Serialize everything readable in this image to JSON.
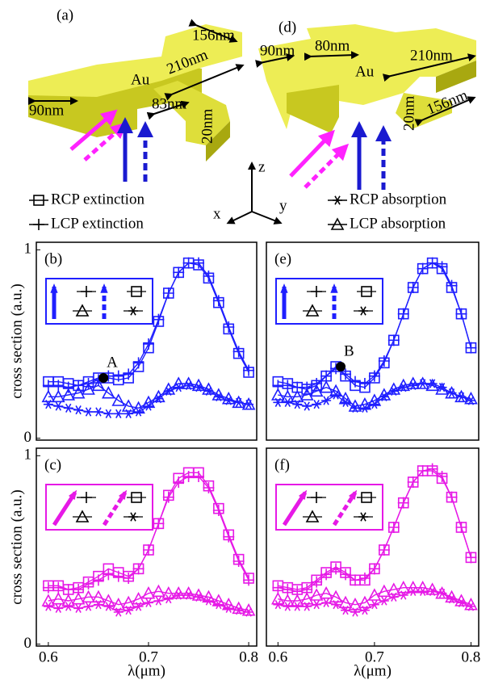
{
  "diagram": {
    "panels": [
      {
        "label": "(a)",
        "material": "Au",
        "dimensions": [
          "156nm",
          "210nm",
          "90nm",
          "83nm",
          "20nm"
        ]
      },
      {
        "label": "(d)",
        "material": "Au",
        "dimensions": [
          "90nm",
          "80nm",
          "210nm",
          "20nm",
          "156nm"
        ]
      }
    ],
    "axes": [
      "z",
      "x",
      "y"
    ]
  },
  "legend": [
    {
      "label": "RCP extinction",
      "marker": "square"
    },
    {
      "label": "LCP extinction",
      "marker": "plus"
    },
    {
      "label": "RCP absorption",
      "marker": "star"
    },
    {
      "label": "LCP absorption",
      "marker": "triangle"
    }
  ],
  "chart_data": [
    {
      "type": "line",
      "panel_label": "(b)",
      "x": [
        0.6,
        0.61,
        0.62,
        0.63,
        0.64,
        0.65,
        0.66,
        0.67,
        0.68,
        0.69,
        0.7,
        0.71,
        0.72,
        0.73,
        0.74,
        0.75,
        0.76,
        0.77,
        0.78,
        0.79,
        0.8
      ],
      "series": [
        {
          "marker": "square",
          "color": "#1f1fff",
          "values": [
            0.3,
            0.3,
            0.29,
            0.28,
            0.3,
            0.32,
            0.32,
            0.31,
            0.32,
            0.38,
            0.48,
            0.62,
            0.77,
            0.88,
            0.93,
            0.92,
            0.85,
            0.72,
            0.58,
            0.45,
            0.35
          ]
        },
        {
          "marker": "plus",
          "color": "#1f1fff",
          "values": [
            0.28,
            0.28,
            0.27,
            0.28,
            0.29,
            0.31,
            0.33,
            0.33,
            0.34,
            0.4,
            0.5,
            0.63,
            0.77,
            0.88,
            0.93,
            0.93,
            0.86,
            0.73,
            0.59,
            0.46,
            0.36
          ]
        },
        {
          "marker": "star",
          "color": "#1f1fff",
          "values": [
            0.18,
            0.17,
            0.16,
            0.15,
            0.14,
            0.14,
            0.13,
            0.13,
            0.13,
            0.14,
            0.17,
            0.21,
            0.25,
            0.27,
            0.28,
            0.27,
            0.25,
            0.22,
            0.2,
            0.19,
            0.18
          ]
        },
        {
          "marker": "triangle",
          "color": "#1f1fff",
          "values": [
            0.22,
            0.22,
            0.23,
            0.24,
            0.26,
            0.28,
            0.24,
            0.2,
            0.17,
            0.16,
            0.19,
            0.22,
            0.26,
            0.29,
            0.29,
            0.28,
            0.26,
            0.23,
            0.21,
            0.19,
            0.18
          ]
        }
      ],
      "xlim": [
        0.588,
        0.808
      ],
      "ylim": [
        -0.01,
        1.04
      ],
      "yticks": [
        0,
        1
      ],
      "y_label": "cross section (a.u.)",
      "annotation": {
        "text": "A",
        "x": 0.655,
        "y": 0.32
      }
    },
    {
      "type": "line",
      "panel_label": "(e)",
      "x": [
        0.6,
        0.61,
        0.62,
        0.63,
        0.64,
        0.65,
        0.66,
        0.67,
        0.68,
        0.69,
        0.7,
        0.71,
        0.72,
        0.73,
        0.74,
        0.75,
        0.76,
        0.77,
        0.78,
        0.79,
        0.8
      ],
      "series": [
        {
          "marker": "square",
          "color": "#1f1fff",
          "values": [
            0.3,
            0.29,
            0.27,
            0.26,
            0.28,
            0.33,
            0.38,
            0.33,
            0.28,
            0.27,
            0.32,
            0.4,
            0.52,
            0.66,
            0.8,
            0.9,
            0.93,
            0.9,
            0.8,
            0.66,
            0.48
          ]
        },
        {
          "marker": "plus",
          "color": "#1f1fff",
          "values": [
            0.28,
            0.28,
            0.27,
            0.27,
            0.29,
            0.33,
            0.37,
            0.34,
            0.3,
            0.29,
            0.33,
            0.41,
            0.52,
            0.66,
            0.8,
            0.9,
            0.93,
            0.91,
            0.81,
            0.66,
            0.48
          ]
        },
        {
          "marker": "star",
          "color": "#1f1fff",
          "values": [
            0.19,
            0.19,
            0.18,
            0.17,
            0.18,
            0.2,
            0.23,
            0.19,
            0.16,
            0.16,
            0.18,
            0.22,
            0.25,
            0.27,
            0.28,
            0.29,
            0.29,
            0.27,
            0.24,
            0.22,
            0.2
          ]
        },
        {
          "marker": "triangle",
          "color": "#1f1fff",
          "values": [
            0.23,
            0.22,
            0.22,
            0.23,
            0.25,
            0.27,
            0.25,
            0.21,
            0.17,
            0.18,
            0.2,
            0.23,
            0.26,
            0.28,
            0.29,
            0.29,
            0.28,
            0.26,
            0.24,
            0.22,
            0.21
          ]
        }
      ],
      "xlim": [
        0.588,
        0.808
      ],
      "ylim": [
        -0.01,
        1.04
      ],
      "annotation": {
        "text": "B",
        "x": 0.665,
        "y": 0.38
      }
    },
    {
      "type": "line",
      "panel_label": "(c)",
      "x": [
        0.6,
        0.61,
        0.62,
        0.63,
        0.64,
        0.65,
        0.66,
        0.67,
        0.68,
        0.69,
        0.7,
        0.71,
        0.72,
        0.73,
        0.74,
        0.75,
        0.76,
        0.77,
        0.78,
        0.79,
        0.8
      ],
      "series": [
        {
          "marker": "square",
          "color": "#e619e6",
          "values": [
            0.31,
            0.31,
            0.29,
            0.3,
            0.33,
            0.36,
            0.4,
            0.38,
            0.36,
            0.4,
            0.5,
            0.64,
            0.79,
            0.88,
            0.91,
            0.91,
            0.84,
            0.72,
            0.58,
            0.45,
            0.35
          ]
        },
        {
          "marker": "plus",
          "color": "#e619e6",
          "values": [
            0.3,
            0.3,
            0.29,
            0.29,
            0.32,
            0.34,
            0.37,
            0.36,
            0.35,
            0.4,
            0.5,
            0.64,
            0.78,
            0.86,
            0.89,
            0.89,
            0.83,
            0.71,
            0.57,
            0.44,
            0.34
          ]
        },
        {
          "marker": "star",
          "color": "#e619e6",
          "values": [
            0.2,
            0.19,
            0.2,
            0.19,
            0.2,
            0.21,
            0.2,
            0.17,
            0.18,
            0.2,
            0.22,
            0.23,
            0.24,
            0.26,
            0.26,
            0.25,
            0.23,
            0.21,
            0.19,
            0.18,
            0.17
          ]
        },
        {
          "marker": "triangle",
          "color": "#e619e6",
          "values": [
            0.23,
            0.24,
            0.23,
            0.24,
            0.25,
            0.25,
            0.23,
            0.21,
            0.22,
            0.24,
            0.27,
            0.28,
            0.27,
            0.27,
            0.27,
            0.26,
            0.25,
            0.23,
            0.21,
            0.19,
            0.18
          ]
        }
      ],
      "xlim": [
        0.588,
        0.808
      ],
      "ylim": [
        -0.01,
        1.04
      ],
      "yticks": [
        0,
        1
      ],
      "y_label": "cross section (a.u.)",
      "xticks": [
        0.6,
        0.7,
        0.8
      ],
      "x_label": "λ(μm)"
    },
    {
      "type": "line",
      "panel_label": "(f)",
      "x": [
        0.6,
        0.61,
        0.62,
        0.63,
        0.64,
        0.65,
        0.66,
        0.67,
        0.68,
        0.69,
        0.7,
        0.71,
        0.72,
        0.73,
        0.74,
        0.75,
        0.76,
        0.77,
        0.78,
        0.79,
        0.8
      ],
      "series": [
        {
          "marker": "square",
          "color": "#e619e6",
          "values": [
            0.31,
            0.3,
            0.29,
            0.3,
            0.34,
            0.38,
            0.41,
            0.38,
            0.34,
            0.34,
            0.4,
            0.5,
            0.62,
            0.75,
            0.86,
            0.92,
            0.92,
            0.88,
            0.78,
            0.62,
            0.46
          ]
        },
        {
          "marker": "plus",
          "color": "#e619e6",
          "values": [
            0.3,
            0.29,
            0.28,
            0.29,
            0.33,
            0.37,
            0.4,
            0.37,
            0.34,
            0.35,
            0.4,
            0.5,
            0.62,
            0.75,
            0.86,
            0.92,
            0.93,
            0.89,
            0.78,
            0.62,
            0.46
          ]
        },
        {
          "marker": "star",
          "color": "#e619e6",
          "values": [
            0.21,
            0.2,
            0.2,
            0.2,
            0.21,
            0.22,
            0.21,
            0.18,
            0.17,
            0.18,
            0.21,
            0.23,
            0.25,
            0.26,
            0.28,
            0.28,
            0.28,
            0.27,
            0.24,
            0.22,
            0.2
          ]
        },
        {
          "marker": "triangle",
          "color": "#e619e6",
          "values": [
            0.24,
            0.23,
            0.23,
            0.24,
            0.26,
            0.27,
            0.25,
            0.22,
            0.21,
            0.22,
            0.26,
            0.28,
            0.29,
            0.3,
            0.3,
            0.3,
            0.29,
            0.27,
            0.25,
            0.23,
            0.21
          ]
        }
      ],
      "xlim": [
        0.588,
        0.808
      ],
      "ylim": [
        -0.01,
        1.04
      ],
      "xticks": [
        0.6,
        0.7,
        0.8
      ],
      "x_label": "λ(μm)"
    }
  ]
}
